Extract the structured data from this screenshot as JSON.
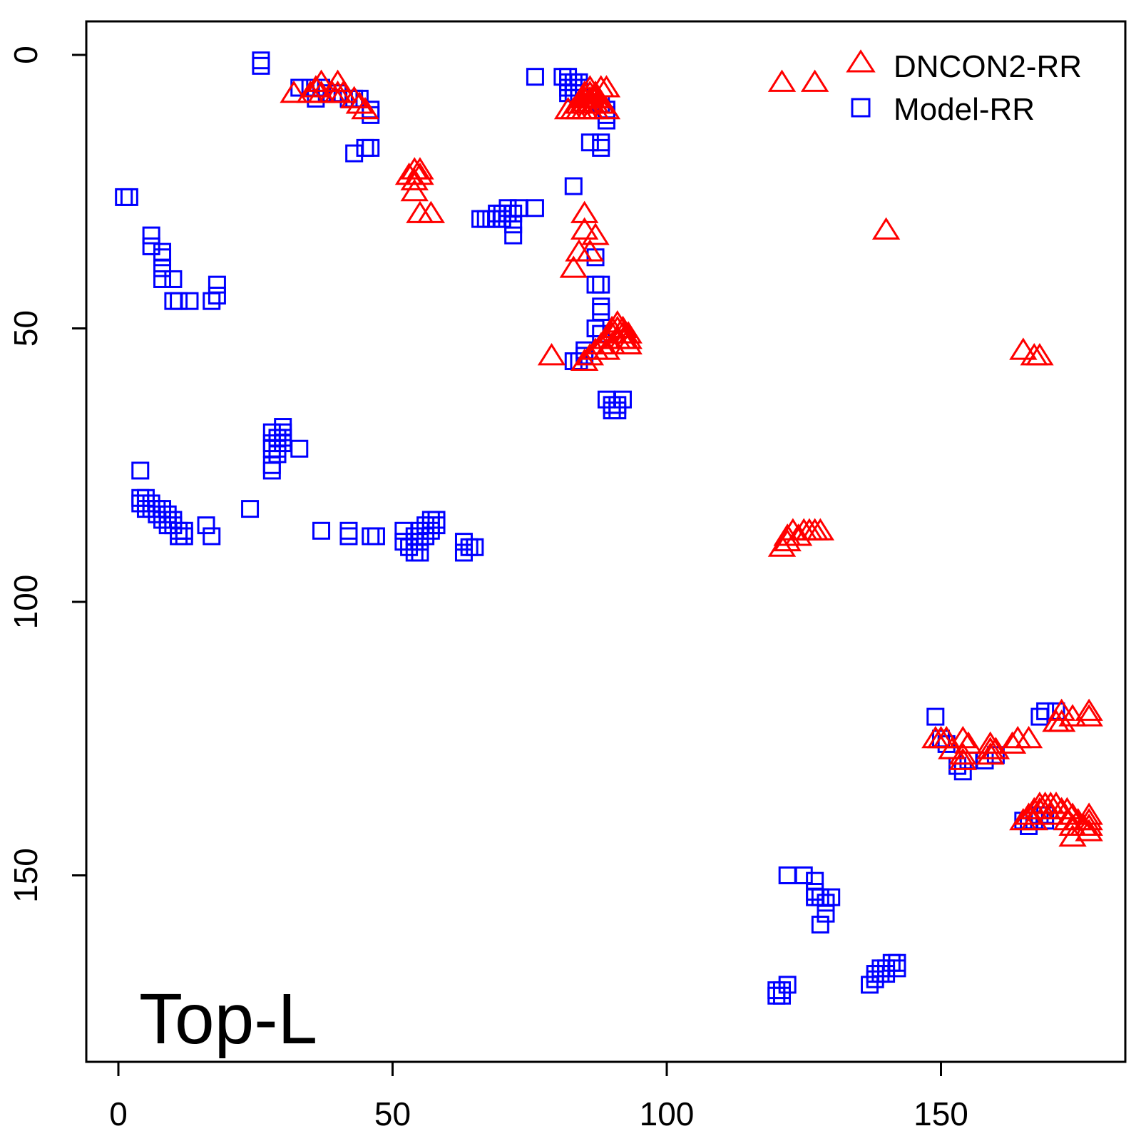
{
  "chart_data": {
    "type": "scatter",
    "title": "",
    "xlabel": "",
    "ylabel": "",
    "xlim": [
      -6,
      184
    ],
    "ylim": [
      -6,
      184
    ],
    "y_reversed": true,
    "x_ticks": [
      0,
      50,
      100,
      150
    ],
    "y_ticks": [
      0,
      50,
      100,
      150
    ],
    "x_tick_labels": [
      "0",
      "50",
      "100",
      "150"
    ],
    "y_tick_labels": [
      "0",
      "50",
      "100",
      "150"
    ],
    "grid": false,
    "legend_position": "top-right",
    "annotation": "Top-L",
    "series": [
      {
        "name": "DNCON2-RR",
        "marker": "triangle",
        "color": "#ff0000",
        "points": [
          [
            121,
            5
          ],
          [
            127,
            5
          ],
          [
            140,
            32
          ],
          [
            165,
            54
          ],
          [
            167,
            55
          ],
          [
            168,
            55
          ],
          [
            32,
            7
          ],
          [
            35,
            7
          ],
          [
            36,
            6
          ],
          [
            37,
            5
          ],
          [
            37,
            7
          ],
          [
            39,
            7
          ],
          [
            40,
            5
          ],
          [
            40,
            7
          ],
          [
            41,
            7
          ],
          [
            43,
            8
          ],
          [
            44,
            9
          ],
          [
            45,
            10
          ],
          [
            53,
            22
          ],
          [
            54,
            21
          ],
          [
            54,
            23
          ],
          [
            55,
            21
          ],
          [
            55,
            22
          ],
          [
            54,
            25
          ],
          [
            55,
            29
          ],
          [
            57,
            29
          ],
          [
            82,
            10
          ],
          [
            83,
            10
          ],
          [
            84,
            9
          ],
          [
            84,
            10
          ],
          [
            85,
            7
          ],
          [
            85,
            8
          ],
          [
            85,
            9
          ],
          [
            85,
            10
          ],
          [
            86,
            6
          ],
          [
            86,
            7
          ],
          [
            86,
            8
          ],
          [
            86,
            9
          ],
          [
            86,
            10
          ],
          [
            87,
            7
          ],
          [
            87,
            8
          ],
          [
            87,
            9
          ],
          [
            87,
            10
          ],
          [
            88,
            6
          ],
          [
            88,
            9
          ],
          [
            89,
            6
          ],
          [
            89,
            10
          ],
          [
            85,
            29
          ],
          [
            85,
            32
          ],
          [
            87,
            33
          ],
          [
            84,
            36
          ],
          [
            86,
            36
          ],
          [
            83,
            39
          ],
          [
            79,
            55
          ],
          [
            85,
            56
          ],
          [
            86,
            55
          ],
          [
            87,
            54
          ],
          [
            88,
            53
          ],
          [
            89,
            52
          ],
          [
            89,
            54
          ],
          [
            90,
            50
          ],
          [
            90,
            51
          ],
          [
            90,
            53
          ],
          [
            91,
            49
          ],
          [
            91,
            50
          ],
          [
            91,
            52
          ],
          [
            92,
            50
          ],
          [
            92,
            51
          ],
          [
            92,
            52
          ],
          [
            93,
            51
          ],
          [
            93,
            52
          ],
          [
            93,
            53
          ],
          [
            121,
            90
          ],
          [
            122,
            88
          ],
          [
            122,
            89
          ],
          [
            123,
            87
          ],
          [
            124,
            88
          ],
          [
            125,
            87
          ],
          [
            126,
            87
          ],
          [
            127,
            87
          ],
          [
            128,
            87
          ],
          [
            149,
            125
          ],
          [
            150,
            125
          ],
          [
            151,
            125
          ],
          [
            152,
            127
          ],
          [
            154,
            125
          ],
          [
            154,
            128
          ],
          [
            154,
            129
          ],
          [
            155,
            126
          ],
          [
            159,
            126
          ],
          [
            159,
            127
          ],
          [
            159,
            128
          ],
          [
            160,
            127
          ],
          [
            163,
            126
          ],
          [
            164,
            125
          ],
          [
            166,
            125
          ],
          [
            171,
            122
          ],
          [
            172,
            120
          ],
          [
            172,
            122
          ],
          [
            174,
            121
          ],
          [
            177,
            120
          ],
          [
            177,
            121
          ],
          [
            165,
            140
          ],
          [
            166,
            139
          ],
          [
            167,
            138
          ],
          [
            167,
            140
          ],
          [
            168,
            137
          ],
          [
            168,
            138
          ],
          [
            169,
            137
          ],
          [
            170,
            137
          ],
          [
            170,
            139
          ],
          [
            171,
            137
          ],
          [
            172,
            138
          ],
          [
            173,
            138
          ],
          [
            173,
            140
          ],
          [
            174,
            139
          ],
          [
            174,
            141
          ],
          [
            174,
            143
          ],
          [
            175,
            140
          ],
          [
            176,
            141
          ],
          [
            177,
            139
          ],
          [
            177,
            140
          ],
          [
            177,
            141
          ],
          [
            177,
            142
          ]
        ]
      },
      {
        "name": "Model-RR",
        "marker": "square",
        "color": "#0000ff",
        "points": [
          [
            26,
            1
          ],
          [
            26,
            2
          ],
          [
            33,
            6
          ],
          [
            35,
            6
          ],
          [
            36,
            8
          ],
          [
            37,
            6
          ],
          [
            38,
            7
          ],
          [
            40,
            7
          ],
          [
            42,
            8
          ],
          [
            43,
            8
          ],
          [
            44,
            8
          ],
          [
            46,
            10
          ],
          [
            46,
            11
          ],
          [
            43,
            18
          ],
          [
            45,
            17
          ],
          [
            46,
            17
          ],
          [
            76,
            4
          ],
          [
            81,
            4
          ],
          [
            82,
            4
          ],
          [
            82,
            5
          ],
          [
            82,
            6
          ],
          [
            82,
            7
          ],
          [
            83,
            5
          ],
          [
            83,
            6
          ],
          [
            83,
            7
          ],
          [
            84,
            5
          ],
          [
            84,
            6
          ],
          [
            84,
            7
          ],
          [
            88,
            9
          ],
          [
            89,
            10
          ],
          [
            89,
            11
          ],
          [
            89,
            12
          ],
          [
            86,
            16
          ],
          [
            88,
            16
          ],
          [
            88,
            17
          ],
          [
            83,
            24
          ],
          [
            1,
            26
          ],
          [
            2,
            26
          ],
          [
            6,
            33
          ],
          [
            6,
            35
          ],
          [
            8,
            36
          ],
          [
            8,
            37
          ],
          [
            8,
            39
          ],
          [
            8,
            41
          ],
          [
            10,
            41
          ],
          [
            10,
            45
          ],
          [
            11,
            45
          ],
          [
            13,
            45
          ],
          [
            17,
            45
          ],
          [
            18,
            44
          ],
          [
            18,
            42
          ],
          [
            66,
            30
          ],
          [
            67,
            30
          ],
          [
            68,
            30
          ],
          [
            69,
            29
          ],
          [
            69,
            30
          ],
          [
            70,
            29
          ],
          [
            70,
            30
          ],
          [
            71,
            28
          ],
          [
            71,
            29
          ],
          [
            72,
            29
          ],
          [
            72,
            31
          ],
          [
            73,
            28
          ],
          [
            76,
            28
          ],
          [
            72,
            33
          ],
          [
            87,
            37
          ],
          [
            87,
            42
          ],
          [
            88,
            42
          ],
          [
            88,
            46
          ],
          [
            88,
            47
          ],
          [
            87,
            50
          ],
          [
            88,
            51
          ],
          [
            85,
            54
          ],
          [
            85,
            55
          ],
          [
            84,
            56
          ],
          [
            83,
            56
          ],
          [
            89,
            63
          ],
          [
            90,
            64
          ],
          [
            90,
            65
          ],
          [
            91,
            64
          ],
          [
            91,
            65
          ],
          [
            92,
            63
          ],
          [
            28,
            69
          ],
          [
            29,
            70
          ],
          [
            30,
            68
          ],
          [
            30,
            69
          ],
          [
            30,
            70
          ],
          [
            30,
            71
          ],
          [
            28,
            71
          ],
          [
            28,
            72
          ],
          [
            29,
            72
          ],
          [
            29,
            73
          ],
          [
            28,
            75
          ],
          [
            28,
            76
          ],
          [
            33,
            72
          ],
          [
            4,
            76
          ],
          [
            4,
            81
          ],
          [
            4,
            82
          ],
          [
            5,
            81
          ],
          [
            5,
            82
          ],
          [
            5,
            83
          ],
          [
            6,
            82
          ],
          [
            6,
            83
          ],
          [
            7,
            83
          ],
          [
            7,
            84
          ],
          [
            8,
            83
          ],
          [
            8,
            85
          ],
          [
            9,
            84
          ],
          [
            9,
            85
          ],
          [
            9,
            86
          ],
          [
            10,
            85
          ],
          [
            10,
            86
          ],
          [
            11,
            87
          ],
          [
            11,
            88
          ],
          [
            12,
            87
          ],
          [
            12,
            88
          ],
          [
            16,
            86
          ],
          [
            17,
            88
          ],
          [
            24,
            83
          ],
          [
            37,
            87
          ],
          [
            42,
            87
          ],
          [
            42,
            88
          ],
          [
            46,
            88
          ],
          [
            47,
            88
          ],
          [
            52,
            87
          ],
          [
            52,
            89
          ],
          [
            53,
            90
          ],
          [
            54,
            88
          ],
          [
            54,
            89
          ],
          [
            54,
            91
          ],
          [
            55,
            87
          ],
          [
            55,
            89
          ],
          [
            55,
            91
          ],
          [
            56,
            86
          ],
          [
            56,
            88
          ],
          [
            57,
            85
          ],
          [
            57,
            86
          ],
          [
            57,
            87
          ],
          [
            58,
            85
          ],
          [
            58,
            86
          ],
          [
            63,
            89
          ],
          [
            63,
            91
          ],
          [
            64,
            90
          ],
          [
            65,
            90
          ],
          [
            149,
            121
          ],
          [
            150,
            125
          ],
          [
            151,
            126
          ],
          [
            155,
            129
          ],
          [
            153,
            130
          ],
          [
            154,
            131
          ],
          [
            158,
            129
          ],
          [
            160,
            128
          ],
          [
            168,
            121
          ],
          [
            169,
            120
          ],
          [
            171,
            120
          ],
          [
            165,
            140
          ],
          [
            166,
            141
          ],
          [
            167,
            140
          ],
          [
            168,
            139
          ],
          [
            169,
            139
          ],
          [
            169,
            140
          ],
          [
            122,
            150
          ],
          [
            125,
            150
          ],
          [
            127,
            151
          ],
          [
            127,
            153
          ],
          [
            127,
            154
          ],
          [
            128,
            154
          ],
          [
            129,
            155
          ],
          [
            130,
            154
          ],
          [
            128,
            159
          ],
          [
            129,
            157
          ],
          [
            120,
            171
          ],
          [
            120,
            172
          ],
          [
            121,
            171
          ],
          [
            121,
            172
          ],
          [
            122,
            170
          ],
          [
            137,
            170
          ],
          [
            138,
            168
          ],
          [
            138,
            169
          ],
          [
            139,
            167
          ],
          [
            139,
            168
          ],
          [
            140,
            167
          ],
          [
            140,
            168
          ],
          [
            141,
            166
          ],
          [
            142,
            166
          ],
          [
            142,
            167
          ]
        ]
      }
    ]
  }
}
